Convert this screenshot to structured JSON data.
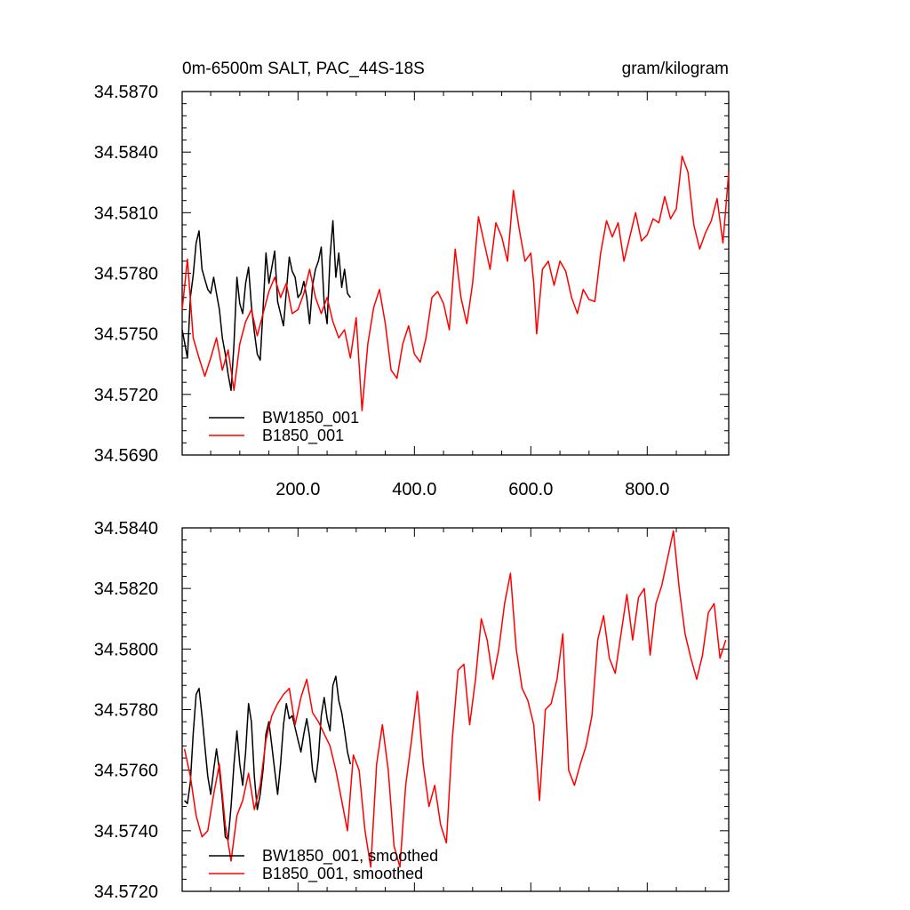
{
  "chart_data": [
    {
      "type": "line",
      "title_left": "0m-6500m SALT, PAC_44S-18S",
      "title_right": "gram/kilogram",
      "xlabel": "",
      "ylabel": "",
      "xlim": [
        1,
        940
      ],
      "ylim": [
        34.569,
        34.587
      ],
      "xticks": [
        200,
        400,
        600,
        800
      ],
      "xtick_labels": [
        "200.0",
        "400.0",
        "600.0",
        "800.0"
      ],
      "yticks": [
        34.569,
        34.572,
        34.575,
        34.578,
        34.581,
        34.584,
        34.587
      ],
      "ytick_labels": [
        "34.5690",
        "34.5720",
        "34.5750",
        "34.5780",
        "34.5810",
        "34.5840",
        "34.5870"
      ],
      "grid": false,
      "legend_position": "bottom-left",
      "series": [
        {
          "name": "BW1850_001",
          "color": "#000000",
          "x": [
            1,
            5,
            10,
            15,
            20,
            25,
            30,
            35,
            40,
            45,
            50,
            55,
            60,
            65,
            70,
            75,
            80,
            85,
            90,
            95,
            100,
            105,
            110,
            115,
            120,
            125,
            130,
            135,
            140,
            145,
            150,
            155,
            160,
            165,
            170,
            175,
            180,
            185,
            190,
            195,
            200,
            205,
            210,
            215,
            220,
            225,
            230,
            235,
            240,
            245,
            250,
            255,
            260,
            265,
            270,
            275,
            280,
            285,
            290
          ],
          "y": [
            34.5752,
            34.5746,
            34.5738,
            34.5768,
            34.5779,
            34.5795,
            34.5801,
            34.5782,
            34.5777,
            34.5772,
            34.577,
            34.5778,
            34.577,
            34.5762,
            34.5748,
            34.574,
            34.573,
            34.5722,
            34.5745,
            34.5778,
            34.5765,
            34.576,
            34.5775,
            34.5783,
            34.5764,
            34.5751,
            34.574,
            34.5737,
            34.5762,
            34.579,
            34.5775,
            34.5783,
            34.5791,
            34.5766,
            34.576,
            34.5754,
            34.5771,
            34.5788,
            34.5781,
            34.5778,
            34.5768,
            34.577,
            34.5776,
            34.5768,
            34.5755,
            34.5774,
            34.5782,
            34.5786,
            34.5793,
            34.5765,
            34.5755,
            34.5788,
            34.5806,
            34.5778,
            34.579,
            34.5773,
            34.5782,
            34.577,
            34.5768
          ]
        },
        {
          "name": "B1850_001",
          "color": "#ff0000",
          "x": [
            1,
            10,
            20,
            30,
            40,
            50,
            60,
            70,
            80,
            90,
            100,
            110,
            120,
            130,
            140,
            150,
            160,
            170,
            180,
            190,
            200,
            210,
            220,
            230,
            240,
            250,
            260,
            270,
            280,
            290,
            300,
            310,
            320,
            330,
            340,
            350,
            360,
            370,
            380,
            390,
            400,
            410,
            420,
            430,
            440,
            450,
            460,
            470,
            480,
            490,
            500,
            510,
            520,
            530,
            540,
            550,
            560,
            570,
            580,
            590,
            600,
            605,
            610,
            620,
            630,
            640,
            650,
            660,
            670,
            680,
            690,
            700,
            710,
            720,
            730,
            740,
            750,
            760,
            770,
            780,
            790,
            800,
            810,
            820,
            830,
            840,
            850,
            860,
            870,
            880,
            890,
            900,
            910,
            920,
            930,
            940
          ],
          "y": [
            34.5762,
            34.5787,
            34.5748,
            34.5738,
            34.5729,
            34.5738,
            34.5748,
            34.5732,
            34.5742,
            34.5722,
            34.5745,
            34.5756,
            34.5762,
            34.5749,
            34.576,
            34.5771,
            34.5778,
            34.5768,
            34.5775,
            34.576,
            34.5762,
            34.577,
            34.5782,
            34.5768,
            34.576,
            34.5768,
            34.5756,
            34.5748,
            34.5752,
            34.5738,
            34.5758,
            34.5712,
            34.5745,
            34.5763,
            34.5772,
            34.5755,
            34.5732,
            34.5728,
            34.5745,
            34.5754,
            34.574,
            34.5736,
            34.5748,
            34.5768,
            34.5771,
            34.5765,
            34.5752,
            34.5792,
            34.5768,
            34.5755,
            34.5775,
            34.5808,
            34.5795,
            34.5782,
            34.5805,
            34.5798,
            34.5786,
            34.5821,
            34.5802,
            34.5786,
            34.579,
            34.5775,
            34.575,
            34.5782,
            34.5786,
            34.5774,
            34.5786,
            34.5781,
            34.5768,
            34.576,
            34.5772,
            34.5767,
            34.5766,
            34.579,
            34.5806,
            34.5798,
            34.5805,
            34.5786,
            34.5798,
            34.581,
            34.5796,
            34.5799,
            34.5807,
            34.5805,
            34.5818,
            34.5807,
            34.5812,
            34.5838,
            34.583,
            34.5804,
            34.5792,
            34.58,
            34.5806,
            34.5817,
            34.5795,
            34.583
          ]
        }
      ]
    },
    {
      "type": "line",
      "xlabel": "",
      "ylabel": "",
      "xlim": [
        1,
        940
      ],
      "ylim": [
        34.572,
        34.584
      ],
      "xticks": [
        200,
        400,
        600,
        800
      ],
      "yticks": [
        34.572,
        34.574,
        34.576,
        34.578,
        34.58,
        34.582,
        34.584
      ],
      "ytick_labels": [
        "34.5720",
        "34.5740",
        "34.5760",
        "34.5780",
        "34.5800",
        "34.5820",
        "34.5840"
      ],
      "grid": false,
      "legend_position": "bottom-left",
      "series": [
        {
          "name": "BW1850_001, smoothed",
          "color": "#000000",
          "x": [
            5,
            10,
            15,
            20,
            25,
            30,
            35,
            40,
            45,
            50,
            55,
            60,
            65,
            70,
            75,
            80,
            85,
            90,
            95,
            100,
            105,
            110,
            115,
            120,
            125,
            130,
            135,
            140,
            145,
            150,
            155,
            160,
            165,
            170,
            175,
            180,
            185,
            190,
            195,
            200,
            205,
            210,
            215,
            220,
            225,
            230,
            235,
            240,
            245,
            250,
            255,
            260,
            265,
            270,
            275,
            280,
            285,
            290
          ],
          "y": [
            34.575,
            34.5749,
            34.5756,
            34.5772,
            34.5785,
            34.5787,
            34.5778,
            34.5768,
            34.5758,
            34.5752,
            34.576,
            34.5767,
            34.576,
            34.575,
            34.5738,
            34.5737,
            34.5748,
            34.5762,
            34.5773,
            34.5762,
            34.5755,
            34.5766,
            34.5782,
            34.5776,
            34.5758,
            34.5747,
            34.5752,
            34.576,
            34.5772,
            34.5776,
            34.5768,
            34.576,
            34.5752,
            34.5762,
            34.5775,
            34.5782,
            34.5777,
            34.5778,
            34.5774,
            34.577,
            34.5766,
            34.5772,
            34.5777,
            34.5771,
            34.576,
            34.5756,
            34.5764,
            34.5778,
            34.5784,
            34.5777,
            34.5773,
            34.5788,
            34.5791,
            34.5783,
            34.5779,
            34.5773,
            34.5766,
            34.5762
          ]
        },
        {
          "name": "B1850_001, smoothed",
          "color": "#ff0000",
          "x": [
            5,
            15,
            25,
            35,
            45,
            55,
            65,
            75,
            85,
            95,
            105,
            115,
            125,
            135,
            145,
            155,
            165,
            175,
            185,
            195,
            205,
            215,
            225,
            235,
            245,
            255,
            265,
            275,
            285,
            295,
            305,
            315,
            325,
            335,
            345,
            355,
            365,
            375,
            385,
            395,
            405,
            415,
            425,
            435,
            445,
            455,
            465,
            475,
            485,
            495,
            505,
            515,
            525,
            535,
            545,
            555,
            565,
            575,
            585,
            595,
            605,
            615,
            625,
            635,
            645,
            655,
            665,
            675,
            685,
            695,
            705,
            715,
            725,
            735,
            745,
            755,
            765,
            775,
            785,
            795,
            805,
            815,
            825,
            835,
            845,
            855,
            865,
            875,
            885,
            895,
            905,
            915,
            925,
            935
          ],
          "y": [
            34.5767,
            34.5758,
            34.5745,
            34.5738,
            34.574,
            34.5752,
            34.5762,
            34.5742,
            34.573,
            34.5745,
            34.575,
            34.5759,
            34.5747,
            34.5755,
            34.577,
            34.5778,
            34.5782,
            34.5785,
            34.5787,
            34.5775,
            34.5784,
            34.579,
            34.5779,
            34.5776,
            34.5772,
            34.5768,
            34.576,
            34.575,
            34.574,
            34.5765,
            34.576,
            34.574,
            34.5728,
            34.5762,
            34.5775,
            34.576,
            34.5735,
            34.5728,
            34.5755,
            34.577,
            34.5786,
            34.5762,
            34.5748,
            34.5755,
            34.5742,
            34.5736,
            34.577,
            34.5793,
            34.5795,
            34.5775,
            34.579,
            34.581,
            34.5803,
            34.579,
            34.58,
            34.5815,
            34.5825,
            34.58,
            34.5787,
            34.5783,
            34.5775,
            34.575,
            34.578,
            34.5782,
            34.579,
            34.5805,
            34.576,
            34.5755,
            34.5762,
            34.5768,
            34.5778,
            34.5803,
            34.5811,
            34.5797,
            34.5792,
            34.5805,
            34.5818,
            34.5803,
            34.5817,
            34.582,
            34.5798,
            34.5815,
            34.5821,
            34.583,
            34.5839,
            34.582,
            34.5805,
            34.5797,
            34.579,
            34.5798,
            34.5812,
            34.5815,
            34.5797,
            34.5803
          ]
        }
      ]
    }
  ]
}
